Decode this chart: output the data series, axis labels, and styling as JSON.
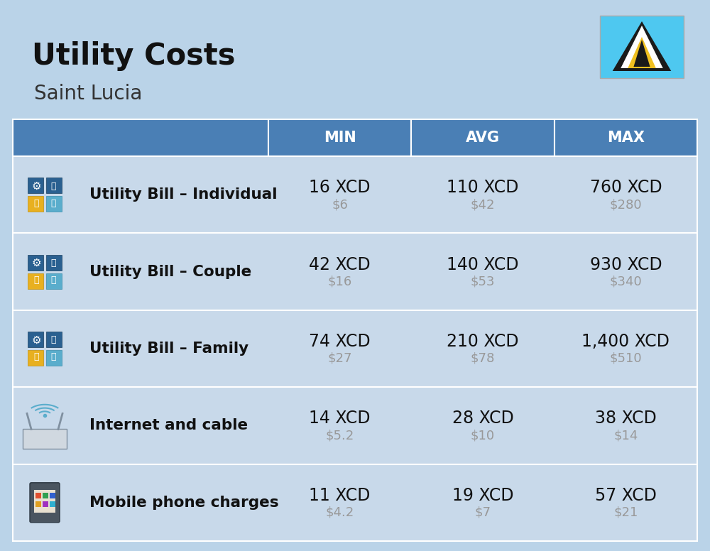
{
  "title": "Utility Costs",
  "subtitle": "Saint Lucia",
  "background_color": "#bad3e8",
  "header_bg_color": "#4a7fb5",
  "header_text_color": "#ffffff",
  "row_bg_color": "#c8d9ea",
  "row_alt_bg_color": "#bdd0e3",
  "divider_color": "#ffffff",
  "columns": [
    "MIN",
    "AVG",
    "MAX"
  ],
  "rows": [
    {
      "label": "Utility Bill – Individual",
      "min_xcd": "16 XCD",
      "min_usd": "$6",
      "avg_xcd": "110 XCD",
      "avg_usd": "$42",
      "max_xcd": "760 XCD",
      "max_usd": "$280"
    },
    {
      "label": "Utility Bill – Couple",
      "min_xcd": "42 XCD",
      "min_usd": "$16",
      "avg_xcd": "140 XCD",
      "avg_usd": "$53",
      "max_xcd": "930 XCD",
      "max_usd": "$340"
    },
    {
      "label": "Utility Bill – Family",
      "min_xcd": "74 XCD",
      "min_usd": "$27",
      "avg_xcd": "210 XCD",
      "avg_usd": "$78",
      "max_xcd": "1,400 XCD",
      "max_usd": "$510"
    },
    {
      "label": "Internet and cable",
      "min_xcd": "14 XCD",
      "min_usd": "$5.2",
      "avg_xcd": "28 XCD",
      "avg_usd": "$10",
      "max_xcd": "38 XCD",
      "max_usd": "$14"
    },
    {
      "label": "Mobile phone charges",
      "min_xcd": "11 XCD",
      "min_usd": "$4.2",
      "avg_xcd": "19 XCD",
      "avg_usd": "$7",
      "max_xcd": "57 XCD",
      "max_usd": "$21"
    }
  ],
  "xcd_fontsize": 17,
  "usd_fontsize": 13,
  "label_fontsize": 15.5,
  "header_fontsize": 15,
  "title_fontsize": 30,
  "subtitle_fontsize": 20,
  "flag_bg": "#4ec8f0",
  "flag_black": "#1a1a1a",
  "flag_white": "#ffffff",
  "flag_yellow": "#f0c020"
}
